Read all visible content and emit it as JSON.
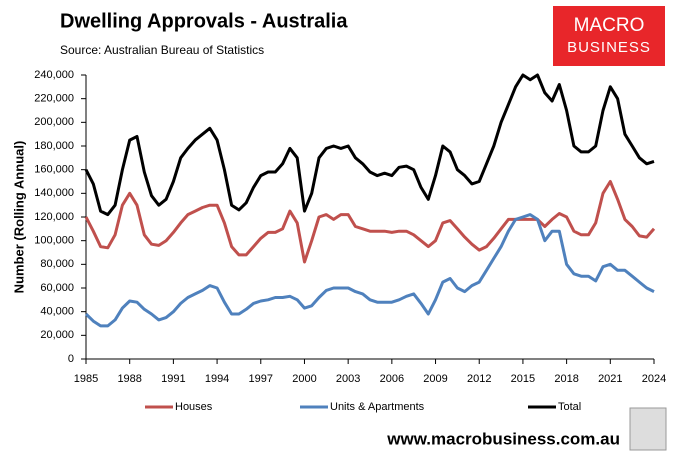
{
  "chart_data": {
    "type": "line",
    "title": "Dwelling Approvals - Australia",
    "subtitle": "Source: Australian Bureau of Statistics",
    "y_label": "Number (Rolling Annual)",
    "x": [
      1985,
      1985.5,
      1986,
      1986.5,
      1987,
      1987.5,
      1988,
      1988.5,
      1989,
      1989.5,
      1990,
      1990.5,
      1991,
      1991.5,
      1992,
      1992.5,
      1993,
      1993.5,
      1994,
      1994.5,
      1995,
      1995.5,
      1996,
      1996.5,
      1997,
      1997.5,
      1998,
      1998.5,
      1999,
      1999.5,
      2000,
      2000.5,
      2001,
      2001.5,
      2002,
      2002.5,
      2003,
      2003.5,
      2004,
      2004.5,
      2005,
      2005.5,
      2006,
      2006.5,
      2007,
      2007.5,
      2008,
      2008.5,
      2009,
      2009.5,
      2010,
      2010.5,
      2011,
      2011.5,
      2012,
      2012.5,
      2013,
      2013.5,
      2014,
      2014.5,
      2015,
      2015.5,
      2016,
      2016.5,
      2017,
      2017.5,
      2018,
      2018.5,
      2019,
      2019.5,
      2020,
      2020.5,
      2021,
      2021.5,
      2022,
      2022.5,
      2023,
      2023.5,
      2024
    ],
    "series": [
      {
        "name": "Houses",
        "color": "#c0504d",
        "values": [
          120000,
          108000,
          95000,
          94000,
          105000,
          130000,
          140000,
          130000,
          105000,
          97000,
          96000,
          100000,
          107000,
          115000,
          122000,
          125000,
          128000,
          130000,
          130000,
          115000,
          95000,
          88000,
          88000,
          95000,
          102000,
          107000,
          107000,
          110000,
          125000,
          115000,
          82000,
          100000,
          120000,
          122000,
          118000,
          122000,
          122000,
          112000,
          110000,
          108000,
          108000,
          108000,
          107000,
          108000,
          108000,
          105000,
          100000,
          95000,
          100000,
          115000,
          117000,
          110000,
          103000,
          97000,
          92000,
          95000,
          102000,
          110000,
          118000,
          118000,
          118000,
          118000,
          118000,
          112000,
          118000,
          123000,
          120000,
          108000,
          105000,
          105000,
          115000,
          140000,
          150000,
          135000,
          118000,
          112000,
          104000,
          103000,
          110000
        ]
      },
      {
        "name": "Units & Apartments",
        "color": "#4f81bd",
        "values": [
          38000,
          32000,
          28000,
          28000,
          33000,
          43000,
          49000,
          48000,
          42000,
          38000,
          33000,
          35000,
          40000,
          47000,
          52000,
          55000,
          58000,
          62000,
          60000,
          48000,
          38000,
          38000,
          42000,
          47000,
          49000,
          50000,
          52000,
          52000,
          53000,
          50000,
          43000,
          45000,
          52000,
          58000,
          60000,
          60000,
          60000,
          57000,
          55000,
          50000,
          48000,
          48000,
          48000,
          50000,
          53000,
          55000,
          47000,
          38000,
          50000,
          65000,
          68000,
          60000,
          57000,
          62000,
          65000,
          75000,
          85000,
          95000,
          108000,
          118000,
          120000,
          122000,
          118000,
          100000,
          108000,
          108000,
          80000,
          72000,
          70000,
          70000,
          66000,
          78000,
          80000,
          75000,
          75000,
          70000,
          65000,
          60000,
          57000
        ]
      },
      {
        "name": "Total",
        "color": "#000000",
        "values": [
          160000,
          148000,
          125000,
          122000,
          130000,
          160000,
          185000,
          188000,
          158000,
          138000,
          130000,
          135000,
          150000,
          170000,
          178000,
          185000,
          190000,
          195000,
          185000,
          160000,
          130000,
          126000,
          132000,
          145000,
          155000,
          158000,
          158000,
          165000,
          178000,
          170000,
          125000,
          140000,
          170000,
          178000,
          180000,
          178000,
          180000,
          170000,
          165000,
          158000,
          155000,
          157000,
          155000,
          162000,
          163000,
          160000,
          145000,
          135000,
          155000,
          180000,
          175000,
          160000,
          155000,
          148000,
          150000,
          165000,
          180000,
          200000,
          215000,
          230000,
          240000,
          236000,
          240000,
          225000,
          218000,
          232000,
          210000,
          180000,
          175000,
          175000,
          180000,
          210000,
          230000,
          220000,
          190000,
          180000,
          170000,
          165000,
          167000
        ]
      }
    ],
    "xlim": [
      1985,
      2024
    ],
    "xticks": [
      1985,
      1988,
      1991,
      1994,
      1997,
      2000,
      2003,
      2006,
      2009,
      2012,
      2015,
      2018,
      2021,
      2024
    ],
    "ylim": [
      0,
      240000
    ],
    "yticks": [
      0,
      {
        "value": 20000,
        "label": "20,000"
      },
      {
        "value": 40000,
        "label": "40,000"
      },
      {
        "value": 60000,
        "label": "60,000"
      },
      {
        "value": 80000,
        "label": "80,000"
      },
      {
        "value": 100000,
        "label": "100,000"
      },
      {
        "value": 120000,
        "label": "120,000"
      },
      {
        "value": 140000,
        "label": "140,000"
      },
      {
        "value": 160000,
        "label": "160,000"
      },
      {
        "value": 180000,
        "label": "180,000"
      },
      {
        "value": 200000,
        "label": "200,000"
      },
      {
        "value": 220000,
        "label": "220,000"
      },
      {
        "value": 240000,
        "label": "240,000"
      }
    ],
    "legend": "bottom"
  },
  "logo": {
    "line1": "MACRO",
    "line2": "BUSINESS"
  },
  "footer": "www.macrobusiness.com.au"
}
